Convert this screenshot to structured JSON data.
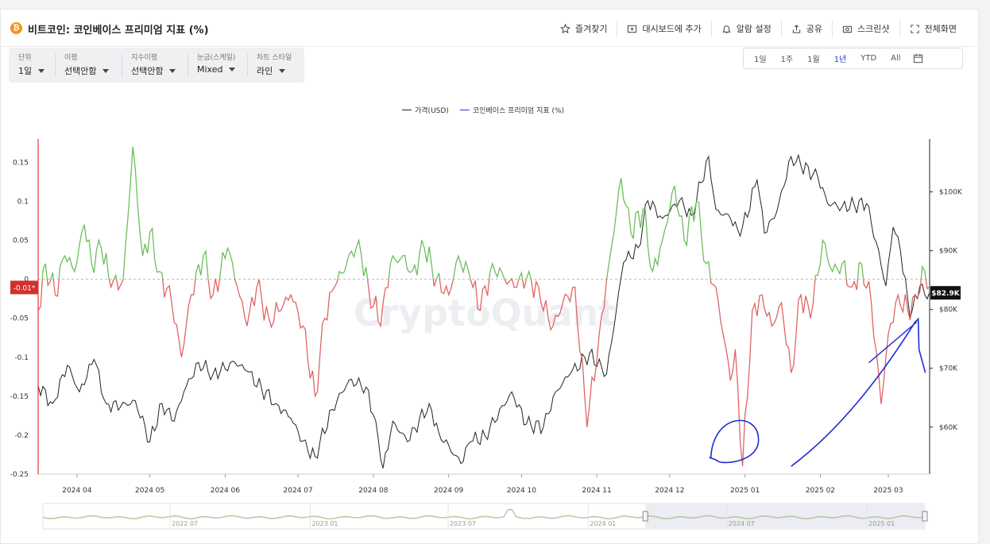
{
  "header": {
    "brand_icon": "bitcoin-icon",
    "title": "비트코인: 코인베이스 프리미엄 지표 (%)",
    "actions": [
      {
        "icon": "star-icon",
        "label": "즐겨찾기"
      },
      {
        "icon": "dashboard-add-icon",
        "label": "대시보드에 추가"
      },
      {
        "icon": "bell-icon",
        "label": "알람 설정"
      },
      {
        "icon": "share-icon",
        "label": "공유"
      },
      {
        "icon": "camera-icon",
        "label": "스크린샷"
      },
      {
        "icon": "fullscreen-icon",
        "label": "전체화면"
      }
    ]
  },
  "controls": [
    {
      "label": "단위",
      "value": "1일"
    },
    {
      "label": "이평",
      "value": "선택안함"
    },
    {
      "label": "지수이평",
      "value": "선택안함"
    },
    {
      "label": "눈금(스케일)",
      "value": "Mixed"
    },
    {
      "label": "차트 스타일",
      "value": "라인"
    }
  ],
  "ranges": {
    "items": [
      "1일",
      "1주",
      "1월",
      "1년",
      "YTD",
      "All"
    ],
    "active": "1년",
    "calendar_icon": "calendar-icon"
  },
  "watermark": "CryptoQuant",
  "colors": {
    "price": "#222222",
    "premium_positive": "#6dbd5c",
    "premium_negative": "#e06464",
    "crosshair": "#e53935",
    "annotation": "#1f2bd6"
  },
  "chart_data": {
    "type": "line",
    "legend": [
      {
        "name": "가격(USD)",
        "color": "#222222"
      },
      {
        "name": "코인베이스 프리미엄 지표 (%)",
        "color": "#2b3bd1"
      }
    ],
    "x_ticks": [
      "2024 04",
      "2024 05",
      "2024 06",
      "2024 07",
      "2024 08",
      "2024 09",
      "2024 10",
      "2024 11",
      "2024 12",
      "2025 01",
      "2025 02",
      "2025 03"
    ],
    "x_range": [
      "2024-03-16",
      "2025-03-18"
    ],
    "y_left": {
      "ticks": [
        0.15,
        0.1,
        0.05,
        0,
        -0.05,
        -0.1,
        -0.15,
        -0.2,
        -0.25
      ],
      "range": [
        -0.25,
        0.18
      ]
    },
    "y_right": {
      "ticks": [
        "$100K",
        "$90K",
        "$80K",
        "$70K",
        "$60K"
      ],
      "tick_values": [
        100000,
        90000,
        80000,
        70000,
        60000
      ],
      "range": [
        52000,
        109000
      ]
    },
    "current_premium_label": "-0.01*",
    "current_price_label": "$82.9K",
    "series": [
      {
        "name": "가격(USD)",
        "axis": "right",
        "points": [
          [
            "2024-03-16",
            67000
          ],
          [
            "2024-03-22",
            64000
          ],
          [
            "2024-03-28",
            70500
          ],
          [
            "2024-04-02",
            66000
          ],
          [
            "2024-04-08",
            71500
          ],
          [
            "2024-04-13",
            64000
          ],
          [
            "2024-04-19",
            63500
          ],
          [
            "2024-04-25",
            64500
          ],
          [
            "2024-05-01",
            57500
          ],
          [
            "2024-05-06",
            64000
          ],
          [
            "2024-05-11",
            61000
          ],
          [
            "2024-05-15",
            66000
          ],
          [
            "2024-05-21",
            71000
          ],
          [
            "2024-05-27",
            69000
          ],
          [
            "2024-06-05",
            71000
          ],
          [
            "2024-06-10",
            69500
          ],
          [
            "2024-06-16",
            66500
          ],
          [
            "2024-06-22",
            64000
          ],
          [
            "2024-06-28",
            61500
          ],
          [
            "2024-07-05",
            56000
          ],
          [
            "2024-07-08",
            55000
          ],
          [
            "2024-07-15",
            63000
          ],
          [
            "2024-07-22",
            68000
          ],
          [
            "2024-07-29",
            66800
          ],
          [
            "2024-08-02",
            61000
          ],
          [
            "2024-08-05",
            53000
          ],
          [
            "2024-08-09",
            61000
          ],
          [
            "2024-08-15",
            57500
          ],
          [
            "2024-08-24",
            64000
          ],
          [
            "2024-08-28",
            59000
          ],
          [
            "2024-09-06",
            53800
          ],
          [
            "2024-09-10",
            57500
          ],
          [
            "2024-09-16",
            58500
          ],
          [
            "2024-09-27",
            66000
          ],
          [
            "2024-10-03",
            60500
          ],
          [
            "2024-10-10",
            60000
          ],
          [
            "2024-10-15",
            66000
          ],
          [
            "2024-10-21",
            69000
          ],
          [
            "2024-10-29",
            72500
          ],
          [
            "2024-11-05",
            69000
          ],
          [
            "2024-11-12",
            88000
          ],
          [
            "2024-11-18",
            90500
          ],
          [
            "2024-11-22",
            98500
          ],
          [
            "2024-11-28",
            95500
          ],
          [
            "2024-12-05",
            98500
          ],
          [
            "2024-12-10",
            96000
          ],
          [
            "2024-12-17",
            106000
          ],
          [
            "2024-12-20",
            97000
          ],
          [
            "2024-12-26",
            95500
          ],
          [
            "2024-12-30",
            92500
          ],
          [
            "2025-01-06",
            102000
          ],
          [
            "2025-01-09",
            93000
          ],
          [
            "2025-01-14",
            96500
          ],
          [
            "2025-01-20",
            106000
          ],
          [
            "2025-01-24",
            104500
          ],
          [
            "2025-01-31",
            102500
          ],
          [
            "2025-02-04",
            98000
          ],
          [
            "2025-02-10",
            97500
          ],
          [
            "2025-02-20",
            98000
          ],
          [
            "2025-02-24",
            91500
          ],
          [
            "2025-02-28",
            84000
          ],
          [
            "2025-03-03",
            94000
          ],
          [
            "2025-03-06",
            90000
          ],
          [
            "2025-03-10",
            78500
          ],
          [
            "2025-03-14",
            84000
          ],
          [
            "2025-03-16",
            82500
          ],
          [
            "2025-03-18",
            82900
          ]
        ]
      },
      {
        "name": "코인베이스 프리미엄 지표 (%)",
        "axis": "left",
        "points": [
          [
            "2024-03-16",
            -0.04
          ],
          [
            "2024-03-19",
            0.02
          ],
          [
            "2024-03-23",
            -0.02
          ],
          [
            "2024-03-27",
            0.03
          ],
          [
            "2024-03-31",
            0.01
          ],
          [
            "2024-04-04",
            0.07
          ],
          [
            "2024-04-07",
            0.02
          ],
          [
            "2024-04-11",
            0.04
          ],
          [
            "2024-04-15",
            -0.01
          ],
          [
            "2024-04-20",
            0.0
          ],
          [
            "2024-04-24",
            0.17
          ],
          [
            "2024-04-28",
            0.03
          ],
          [
            "2024-05-01",
            0.06
          ],
          [
            "2024-05-05",
            0.01
          ],
          [
            "2024-05-10",
            -0.03
          ],
          [
            "2024-05-14",
            -0.1
          ],
          [
            "2024-05-18",
            -0.02
          ],
          [
            "2024-05-23",
            0.03
          ],
          [
            "2024-05-27",
            -0.02
          ],
          [
            "2024-06-02",
            0.04
          ],
          [
            "2024-06-06",
            -0.01
          ],
          [
            "2024-06-10",
            -0.06
          ],
          [
            "2024-06-14",
            -0.01
          ],
          [
            "2024-06-19",
            -0.05
          ],
          [
            "2024-06-24",
            -0.04
          ],
          [
            "2024-06-28",
            -0.02
          ],
          [
            "2024-07-03",
            -0.06
          ],
          [
            "2024-07-08",
            -0.15
          ],
          [
            "2024-07-12",
            -0.05
          ],
          [
            "2024-07-16",
            -0.01
          ],
          [
            "2024-07-21",
            0.02
          ],
          [
            "2024-07-26",
            0.05
          ],
          [
            "2024-07-30",
            -0.01
          ],
          [
            "2024-08-04",
            -0.06
          ],
          [
            "2024-08-08",
            0.02
          ],
          [
            "2024-08-13",
            0.03
          ],
          [
            "2024-08-17",
            0.01
          ],
          [
            "2024-08-22",
            0.04
          ],
          [
            "2024-08-27",
            0.0
          ],
          [
            "2024-09-01",
            -0.02
          ],
          [
            "2024-09-05",
            0.03
          ],
          [
            "2024-09-10",
            0.0
          ],
          [
            "2024-09-14",
            -0.04
          ],
          [
            "2024-09-19",
            0.02
          ],
          [
            "2024-09-24",
            0.0
          ],
          [
            "2024-09-29",
            -0.01
          ],
          [
            "2024-10-04",
            0.01
          ],
          [
            "2024-10-09",
            -0.03
          ],
          [
            "2024-10-14",
            -0.06
          ],
          [
            "2024-10-18",
            -0.03
          ],
          [
            "2024-10-23",
            -0.01
          ],
          [
            "2024-10-28",
            -0.19
          ],
          [
            "2024-11-02",
            -0.07
          ],
          [
            "2024-11-06",
            0.02
          ],
          [
            "2024-11-11",
            0.13
          ],
          [
            "2024-11-15",
            0.06
          ],
          [
            "2024-11-20",
            0.09
          ],
          [
            "2024-11-24",
            0.01
          ],
          [
            "2024-11-28",
            0.05
          ],
          [
            "2024-12-03",
            0.12
          ],
          [
            "2024-12-07",
            0.05
          ],
          [
            "2024-12-12",
            0.1
          ],
          [
            "2024-12-16",
            0.02
          ],
          [
            "2024-12-20",
            -0.01
          ],
          [
            "2024-12-23",
            -0.07
          ],
          [
            "2024-12-26",
            -0.13
          ],
          [
            "2024-12-28",
            -0.09
          ],
          [
            "2024-12-31",
            -0.24
          ],
          [
            "2025-01-04",
            -0.04
          ],
          [
            "2025-01-08",
            -0.02
          ],
          [
            "2025-01-12",
            -0.06
          ],
          [
            "2025-01-16",
            -0.03
          ],
          [
            "2025-01-20",
            -0.12
          ],
          [
            "2025-01-24",
            -0.02
          ],
          [
            "2025-01-28",
            -0.05
          ],
          [
            "2025-02-02",
            0.05
          ],
          [
            "2025-02-06",
            0.01
          ],
          [
            "2025-02-10",
            0.02
          ],
          [
            "2025-02-14",
            -0.01
          ],
          [
            "2025-02-18",
            0.02
          ],
          [
            "2025-02-22",
            -0.03
          ],
          [
            "2025-02-26",
            -0.16
          ],
          [
            "2025-03-01",
            -0.07
          ],
          [
            "2025-03-05",
            -0.02
          ],
          [
            "2025-03-09",
            -0.04
          ],
          [
            "2025-03-12",
            -0.02
          ],
          [
            "2025-03-16",
            0.01
          ],
          [
            "2025-03-18",
            -0.01
          ]
        ]
      }
    ],
    "navigator": {
      "ticks": [
        "2022 07",
        "2023 01",
        "2023 07",
        "2024 01",
        "2024 07",
        "2025 01"
      ],
      "range": [
        "2022-01-15",
        "2025-03-18"
      ],
      "selected": [
        "2024-03-16",
        "2025-03-18"
      ]
    }
  }
}
